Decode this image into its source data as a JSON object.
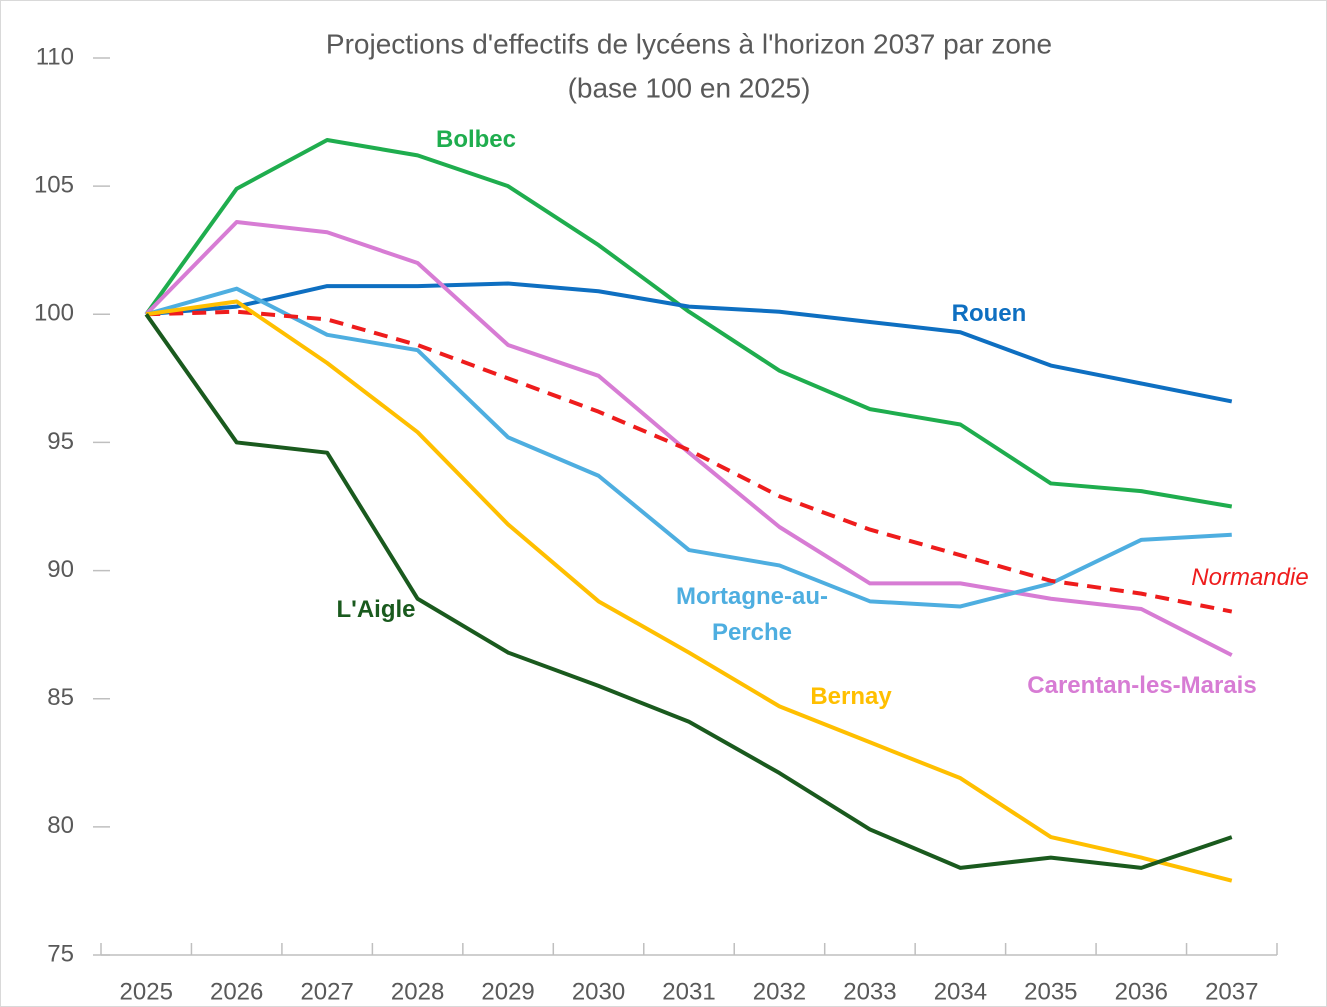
{
  "chart_data": {
    "type": "line",
    "title": "Projections d'effectifs de lycéens à l'horizon 2037 par zone",
    "subtitle": "(base 100 en 2025)",
    "categories": [
      "2025",
      "2026",
      "2027",
      "2028",
      "2029",
      "2030",
      "2031",
      "2032",
      "2033",
      "2034",
      "2035",
      "2036",
      "2037"
    ],
    "series": [
      {
        "name": "Bolbec",
        "color": "#1fad4e",
        "values": [
          100,
          104.9,
          106.8,
          106.2,
          105.0,
          102.7,
          100.1,
          97.8,
          96.3,
          95.7,
          93.4,
          93.1,
          92.5
        ]
      },
      {
        "name": "Rouen",
        "color": "#0e6fc1",
        "values": [
          100,
          100.3,
          101.1,
          101.1,
          101.2,
          100.9,
          100.3,
          100.1,
          99.7,
          99.3,
          98.0,
          97.3,
          96.6
        ]
      },
      {
        "name": "Carentan-les-Marais",
        "color": "#d77cd4",
        "values": [
          100,
          103.6,
          103.2,
          102.0,
          98.8,
          97.6,
          94.6,
          91.7,
          89.5,
          89.5,
          88.9,
          88.5,
          86.7
        ]
      },
      {
        "name": "Mortagne-au-Perche",
        "color": "#4eaee0",
        "values": [
          100,
          101.0,
          99.2,
          98.6,
          95.2,
          93.7,
          90.8,
          90.2,
          88.8,
          88.6,
          89.5,
          91.2,
          91.4
        ]
      },
      {
        "name": "Normandie",
        "color": "#ee1c1c",
        "dashed": true,
        "values": [
          100,
          100.1,
          99.8,
          98.8,
          97.5,
          96.2,
          94.7,
          92.9,
          91.6,
          90.6,
          89.6,
          89.1,
          88.4
        ]
      },
      {
        "name": "Bernay",
        "color": "#ffbf00",
        "values": [
          100,
          100.5,
          98.1,
          95.4,
          91.8,
          88.8,
          86.8,
          84.7,
          83.3,
          81.9,
          79.6,
          78.8,
          77.9
        ]
      },
      {
        "name": "L'Aigle",
        "color": "#1a5a1e",
        "values": [
          100,
          95.0,
          94.6,
          88.9,
          86.8,
          85.5,
          84.1,
          82.1,
          79.9,
          78.4,
          78.8,
          78.4,
          79.6
        ]
      }
    ],
    "ylim": [
      75,
      110
    ],
    "yticks": [
      75,
      80,
      85,
      90,
      95,
      100,
      105,
      110
    ],
    "grid": false
  }
}
